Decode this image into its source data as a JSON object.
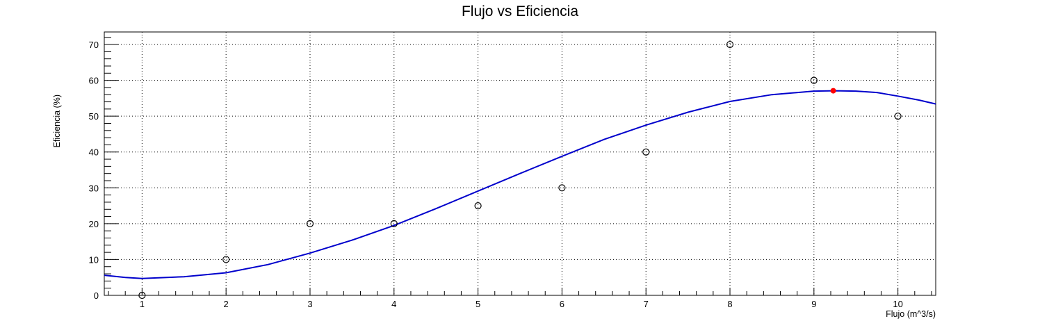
{
  "chart_data": {
    "type": "scatter",
    "title": "Flujo vs Eficiencia",
    "xlabel": "Flujo (m^3/s)",
    "ylabel": "Eficiencia (%)",
    "xlim": [
      0.55,
      10.45
    ],
    "ylim": [
      0,
      73.5
    ],
    "x_ticks": [
      1,
      2,
      3,
      4,
      5,
      6,
      7,
      8,
      9,
      10
    ],
    "y_ticks": [
      0,
      10,
      20,
      30,
      40,
      50,
      60,
      70
    ],
    "grid": true,
    "points": {
      "x": [
        1,
        2,
        3,
        4,
        5,
        6,
        7,
        8,
        9,
        10
      ],
      "y": [
        0,
        10,
        20,
        20,
        25,
        30,
        40,
        70,
        60,
        50
      ],
      "marker": "open-circle",
      "color": "#000000"
    },
    "fit_curve": {
      "x": [
        0.55,
        0.8,
        1.0,
        1.5,
        2.0,
        2.5,
        3.0,
        3.5,
        4.0,
        4.5,
        5.0,
        5.5,
        6.0,
        6.5,
        7.0,
        7.5,
        8.0,
        8.5,
        9.0,
        9.25,
        9.5,
        9.75,
        10.0,
        10.25,
        10.45
      ],
      "y": [
        5.6,
        5.0,
        4.7,
        5.2,
        6.3,
        8.6,
        11.8,
        15.4,
        19.5,
        24.2,
        29.1,
        34.0,
        38.8,
        43.5,
        47.5,
        51.1,
        54.1,
        56.0,
        57.0,
        57.1,
        57.0,
        56.6,
        55.6,
        54.5,
        53.4
      ],
      "color": "#0000cc"
    },
    "highlight_point": {
      "x": 9.23,
      "y": 57.1,
      "color": "#ff0000"
    }
  }
}
